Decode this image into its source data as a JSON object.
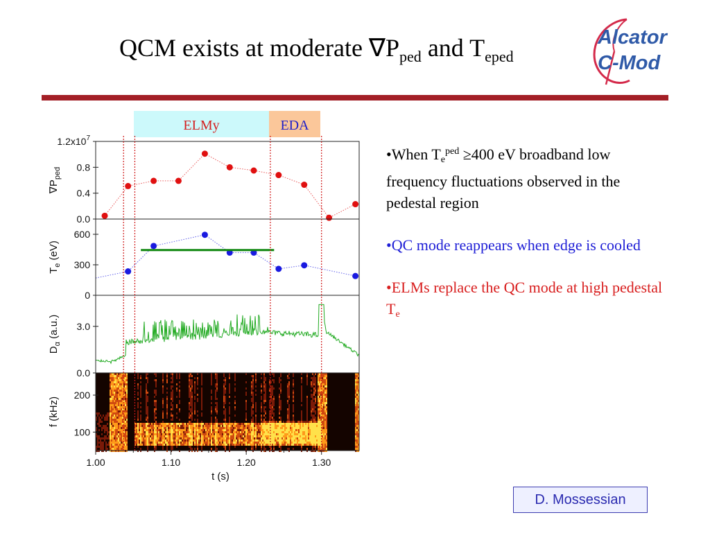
{
  "slide": {
    "title_main": "QCM exists at moderate ∇P",
    "title_sub1": "ped",
    "title_mid": " and T",
    "title_sub2": "eped",
    "logo_line1": "Alcator",
    "logo_line2": "C-Mod",
    "credit": "D. Mossessian",
    "bands": {
      "elmy": "ELMy",
      "eda": "EDA"
    },
    "bullets": [
      {
        "bullet": "•",
        "t1": "When T",
        "sub": "e",
        "sup": "ped",
        "t2": " ≥400 eV broadband low frequency fluctuations observed in the pedestal region"
      },
      {
        "bullet": "•",
        "t1": "QC mode reappears when edge is cooled"
      },
      {
        "bullet": "•",
        "t1": "ELMs replace the QC mode at high pedestal T",
        "sub": "e"
      }
    ]
  },
  "chart_data": {
    "type": "scatter",
    "xlabel": "t (s)",
    "xlim": [
      1.0,
      1.35
    ],
    "xticks": [
      "1.00",
      "1.10",
      "1.20",
      "1.30"
    ],
    "vlines": [
      1.037,
      1.052,
      1.232,
      1.3
    ],
    "panels": [
      {
        "name": "gradP",
        "ylabel_main": "∇P",
        "ylabel_sub": "ped",
        "ymax_label": "1.2x10",
        "ymax_exp": "7",
        "ylim": [
          0,
          1.2
        ],
        "yticks": [
          "0.0",
          "0.4",
          "0.8"
        ],
        "color": "#e01010",
        "x": [
          1.012,
          1.043,
          1.077,
          1.11,
          1.145,
          1.178,
          1.21,
          1.243,
          1.277,
          1.31,
          1.345
        ],
        "y": [
          0.05,
          0.51,
          0.59,
          0.59,
          1.01,
          0.8,
          0.75,
          0.68,
          0.53,
          0.02,
          0.23
        ]
      },
      {
        "name": "Te",
        "ylabel_main": "T",
        "ylabel_sub": "e",
        "ylabel_tail": " (eV)",
        "ylim": [
          0,
          750
        ],
        "yticks": [
          "0",
          "300",
          "600"
        ],
        "color": "#1a1ae0",
        "x": [
          1.043,
          1.077,
          1.145,
          1.178,
          1.21,
          1.243,
          1.277,
          1.345
        ],
        "y": [
          235,
          485,
          595,
          420,
          420,
          260,
          295,
          190
        ],
        "line_start": [
          1.0,
          170
        ],
        "hline": {
          "x0": 1.06,
          "x1": 1.237,
          "y": 445,
          "color": "#118811"
        }
      },
      {
        "name": "Dalpha",
        "ylabel_main": "D",
        "ylabel_sub": "α",
        "ylabel_tail": " (a.u.)",
        "ylim": [
          0,
          5.0
        ],
        "yticks": [
          "0.0",
          "3.0"
        ],
        "color": "#22aa22"
      },
      {
        "name": "spectrogram",
        "ylabel_main": "f (kHz)",
        "ylim": [
          50,
          260
        ],
        "yticks": [
          "100",
          "200"
        ]
      }
    ]
  }
}
